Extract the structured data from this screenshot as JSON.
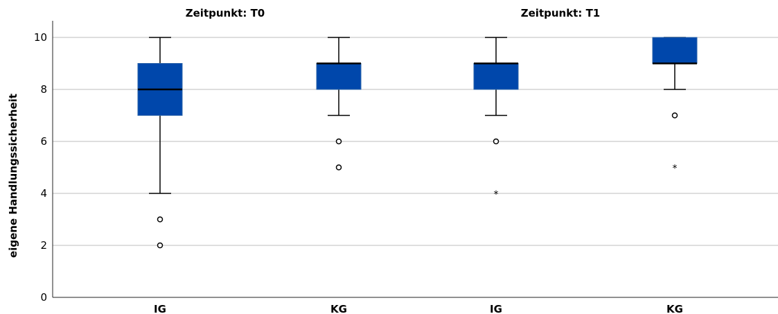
{
  "chart_data": {
    "type": "boxplot",
    "ylabel": "eigene Handlungssicherheit",
    "ylim": [
      0,
      10
    ],
    "yticks": [
      0,
      2,
      4,
      6,
      8,
      10
    ],
    "grid": true,
    "colors": {
      "box": "#0047AB",
      "box_edge": "#2a63a8",
      "grid": "#bdbdbd"
    },
    "panels": [
      {
        "title": "Zeitpunkt: T0",
        "groups": [
          {
            "category": "IG",
            "min": 4,
            "q1": 7,
            "median": 8,
            "q3": 9,
            "max": 10,
            "outliers": [
              3,
              2
            ],
            "extremes": []
          },
          {
            "category": "KG",
            "min": 7,
            "q1": 8,
            "median": 9,
            "q3": 9,
            "max": 10,
            "outliers": [
              6,
              5
            ],
            "extremes": []
          }
        ]
      },
      {
        "title": "Zeitpunkt: T1",
        "groups": [
          {
            "category": "IG",
            "min": 7,
            "q1": 8,
            "median": 9,
            "q3": 9,
            "max": 10,
            "outliers": [
              6
            ],
            "extremes": [
              4
            ]
          },
          {
            "category": "KG",
            "min": 8,
            "q1": 9,
            "median": 9,
            "q3": 10,
            "max": 10,
            "outliers": [
              7
            ],
            "extremes": [
              5
            ]
          }
        ]
      }
    ]
  }
}
